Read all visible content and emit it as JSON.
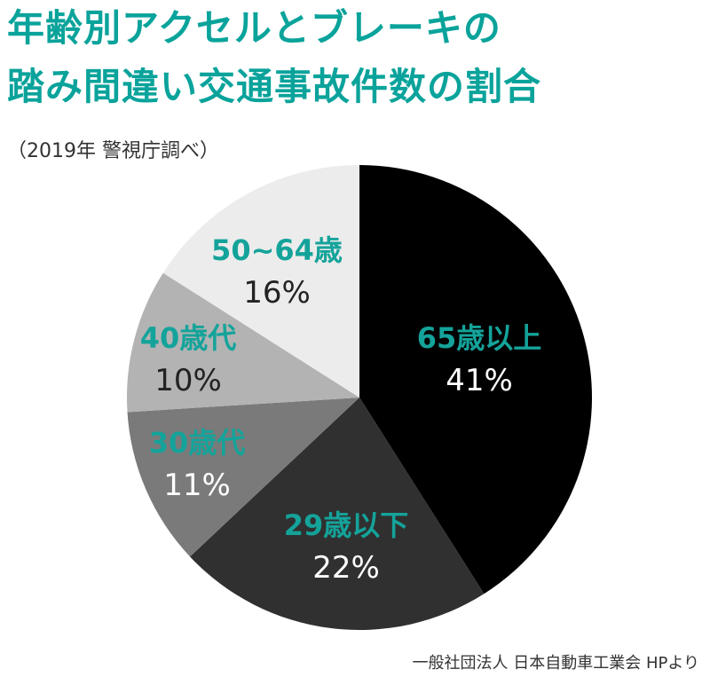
{
  "title": {
    "line1": "年齢別アクセルとブレーキの",
    "line2": "踏み間違い交通事故件数の割合"
  },
  "subtitle": "（2019年 警視庁調べ）",
  "source": "一般社団法人 日本自動車工業会 HPより",
  "colors": {
    "title": "#0aa39b",
    "category_label": "#14a39a",
    "percent_on_dark": "#ffffff",
    "percent_on_light": "#222222"
  },
  "chart_data": {
    "type": "pie",
    "start_angle_deg": 0,
    "direction": "clockwise",
    "slices": [
      {
        "label": "65歳以上",
        "value": 41,
        "value_label": "41%",
        "color": "#000000"
      },
      {
        "label": "29歳以下",
        "value": 22,
        "value_label": "22%",
        "color": "#303030"
      },
      {
        "label": "30歳代",
        "value": 11,
        "value_label": "11%",
        "color": "#7a7a7a"
      },
      {
        "label": "40歳代",
        "value": 10,
        "value_label": "10%",
        "color": "#b3b3b3"
      },
      {
        "label": "50~64歳",
        "value": 16,
        "value_label": "16%",
        "color": "#ececec"
      }
    ]
  }
}
